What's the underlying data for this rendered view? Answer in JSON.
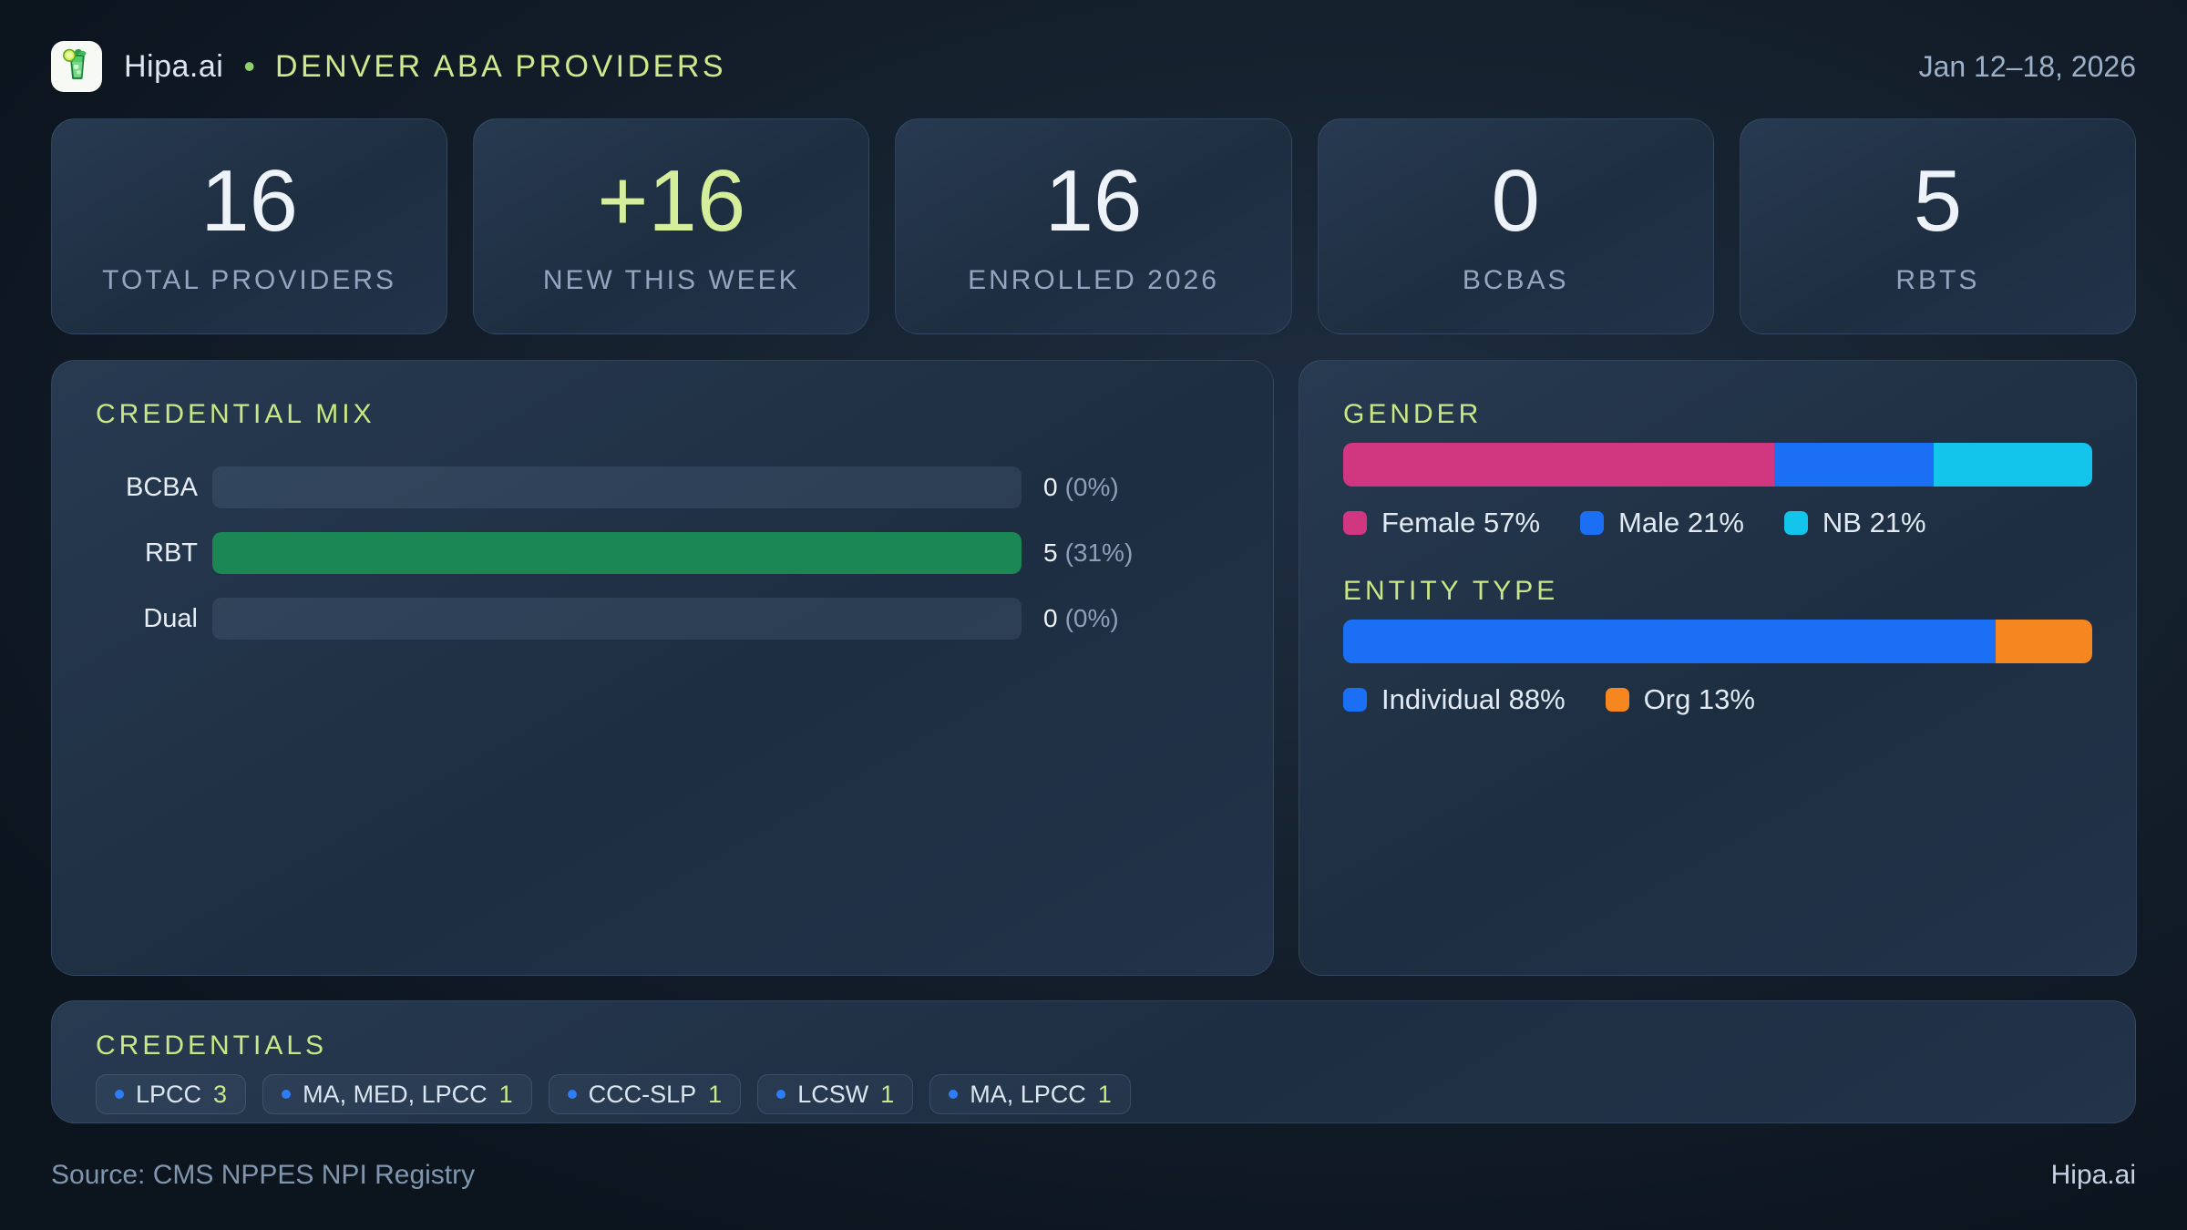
{
  "header": {
    "brand": "Hipa.ai",
    "separator": "•",
    "title": "DENVER ABA PROVIDERS",
    "date_range": "Jan 12–18, 2026",
    "logo_icon": "mojito-drink-icon"
  },
  "colors": {
    "accent_green": "#d5ee9b",
    "section_title_green": "#c9e784",
    "bar_green": "#1b8755",
    "female_pink": "#d13680",
    "male_blue": "#1a6ff5",
    "nb_cyan": "#13c5ea",
    "individual_blue": "#1a6ff5",
    "org_orange": "#f6861f",
    "badge_dot_blue": "#2e7cf6",
    "count_green": "#c9e88a"
  },
  "stats": [
    {
      "value": "16",
      "label": "TOTAL PROVIDERS"
    },
    {
      "value": "+16",
      "label": "NEW THIS WEEK"
    },
    {
      "value": "16",
      "label": "ENROLLED 2026"
    },
    {
      "value": "0",
      "label": "BCBAS"
    },
    {
      "value": "5",
      "label": "RBTS"
    }
  ],
  "credential_mix": {
    "title": "CREDENTIAL MIX",
    "rows": [
      {
        "label": "BCBA",
        "count": "0",
        "pct": "(0%)",
        "fill_pct": 0
      },
      {
        "label": "RBT",
        "count": "5",
        "pct": "(31%)",
        "fill_pct": 100
      },
      {
        "label": "Dual",
        "count": "0",
        "pct": "(0%)",
        "fill_pct": 0
      }
    ]
  },
  "gender": {
    "title": "GENDER",
    "segments": [
      {
        "label": "Female 57%",
        "value": 57,
        "color": "#d13680"
      },
      {
        "label": "Male 21%",
        "value": 21,
        "color": "#1a6ff5"
      },
      {
        "label": "NB 21%",
        "value": 21,
        "color": "#13c5ea"
      }
    ]
  },
  "entity_type": {
    "title": "ENTITY TYPE",
    "segments": [
      {
        "label": "Individual 88%",
        "value": 88,
        "color": "#1a6ff5"
      },
      {
        "label": "Org 13%",
        "value": 13,
        "color": "#f6861f"
      }
    ]
  },
  "credentials": {
    "title": "CREDENTIALS",
    "badges": [
      {
        "label": "LPCC",
        "count": "3"
      },
      {
        "label": "MA, MED, LPCC",
        "count": "1"
      },
      {
        "label": "CCC-SLP",
        "count": "1"
      },
      {
        "label": "LCSW",
        "count": "1"
      },
      {
        "label": "MA, LPCC",
        "count": "1"
      }
    ]
  },
  "footer": {
    "source": "Source: CMS NPPES NPI Registry",
    "brand": "Hipa.ai"
  },
  "chart_data": [
    {
      "type": "bar",
      "title": "CREDENTIAL MIX",
      "categories": [
        "BCBA",
        "RBT",
        "Dual"
      ],
      "values": [
        0,
        5,
        0
      ],
      "percent_labels": [
        "0%",
        "31%",
        "0%"
      ],
      "xlabel": "",
      "ylabel": "",
      "note": "horizontal bars scaled to max value (RBT=5 renders full width)"
    },
    {
      "type": "bar",
      "title": "GENDER",
      "subtype": "stacked-horizontal-100pct",
      "series": [
        {
          "name": "Female",
          "values": [
            57
          ]
        },
        {
          "name": "Male",
          "values": [
            21
          ]
        },
        {
          "name": "NB",
          "values": [
            21
          ]
        }
      ],
      "legend_position": "bottom"
    },
    {
      "type": "bar",
      "title": "ENTITY TYPE",
      "subtype": "stacked-horizontal-100pct",
      "series": [
        {
          "name": "Individual",
          "values": [
            88
          ]
        },
        {
          "name": "Org",
          "values": [
            13
          ]
        }
      ],
      "legend_position": "bottom"
    }
  ]
}
